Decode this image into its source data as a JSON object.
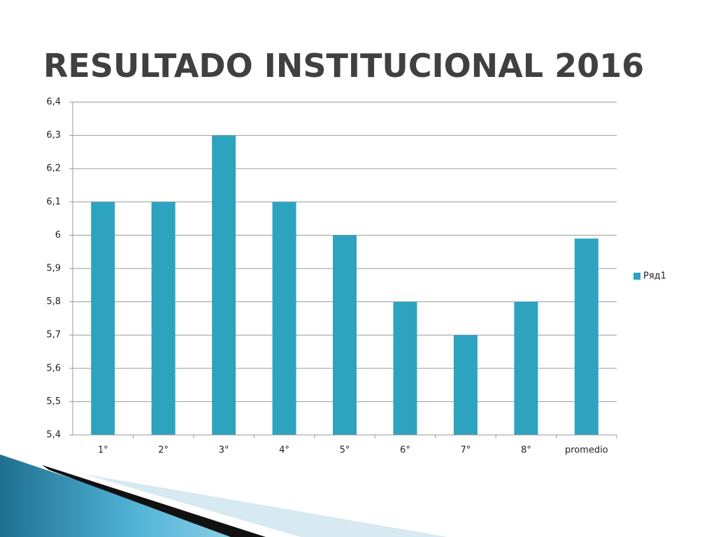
{
  "chart_data": {
    "type": "bar",
    "title": "RESULTADO INSTITUCIONAL 2016",
    "categories": [
      "1°",
      "2°",
      "3°",
      "4°",
      "5°",
      "6°",
      "7°",
      "8°",
      "promedio"
    ],
    "series": [
      {
        "name": "Ряд1",
        "color": "#2ea3c0",
        "values": [
          6.1,
          6.1,
          6.3,
          6.1,
          6.0,
          5.8,
          5.7,
          5.8,
          5.99
        ]
      }
    ],
    "ylim": [
      5.4,
      6.4
    ],
    "yticks": [
      {
        "value": 5.4,
        "label": "5,4"
      },
      {
        "value": 5.5,
        "label": "5,5"
      },
      {
        "value": 5.6,
        "label": "5,6"
      },
      {
        "value": 5.7,
        "label": "5,7"
      },
      {
        "value": 5.8,
        "label": "5,8"
      },
      {
        "value": 5.9,
        "label": "5,9"
      },
      6,
      {
        "value": 6.1,
        "label": "6,1"
      },
      {
        "value": 6.2,
        "label": "6,2"
      },
      {
        "value": 6.3,
        "label": "6,3"
      },
      {
        "value": 6.4,
        "label": "6,4"
      }
    ],
    "grid": true,
    "legend": "right"
  }
}
